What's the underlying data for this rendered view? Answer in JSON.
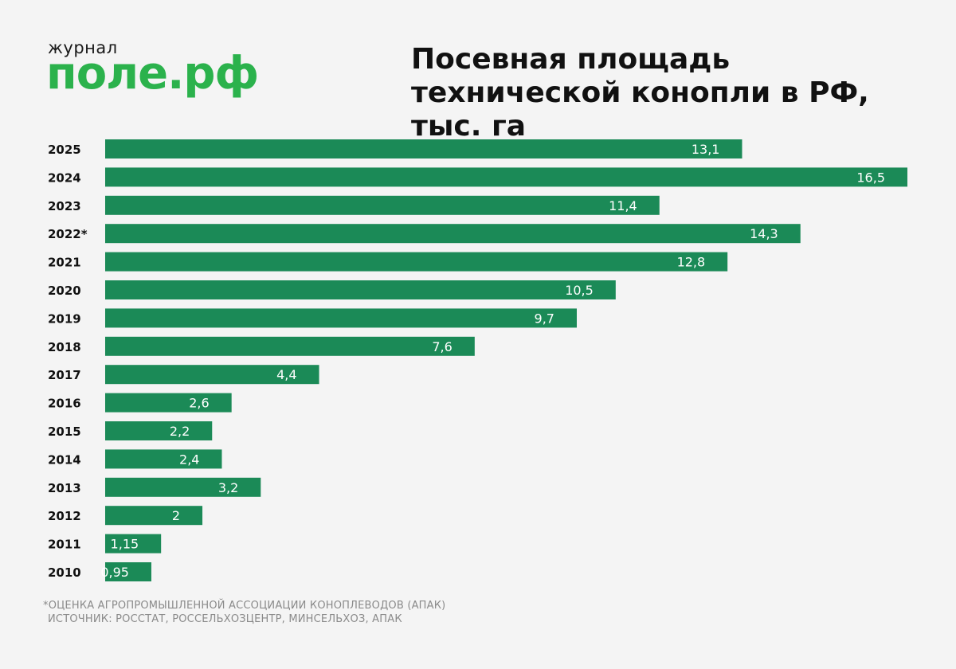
{
  "logo": {
    "small": "журнал",
    "main": "поле.рф"
  },
  "title": "Посевная площадь технической конопли в РФ, тыс. га",
  "footnote": {
    "line1": "*ОЦЕНКА АГРОПРОМЫШЛЕННОЙ АССОЦИАЦИИ КОНОПЛЕВОДОВ (АПАК)",
    "line2": "ИСТОЧНИК: РОССТАТ, РОССЕЛЬХОЗЦЕНТР, МИНСЕЛЬХОЗ, АПАК"
  },
  "colors": {
    "bar": "#1b8a57",
    "logo": "#2bb24c",
    "background": "#f4f4f4"
  },
  "chart_data": {
    "type": "bar",
    "orientation": "horizontal",
    "title": "Посевная площадь технической конопли в РФ, тыс. га",
    "categories": [
      "2025",
      "2024",
      "2023",
      "2022*",
      "2021",
      "2020",
      "2019",
      "2018",
      "2017",
      "2016",
      "2015",
      "2014",
      "2013",
      "2012",
      "2011",
      "2010"
    ],
    "values": [
      13.1,
      16.5,
      11.4,
      14.3,
      12.8,
      10.5,
      9.7,
      7.6,
      4.4,
      2.6,
      2.2,
      2.4,
      3.2,
      2.0,
      1.15,
      0.95
    ],
    "value_labels": [
      "13,1",
      "16,5",
      "11,4",
      "14,3",
      "12,8",
      "10,5",
      "9,7",
      "7,6",
      "4,4",
      "2,6",
      "2,2",
      "2,4",
      "3,2",
      "2",
      "1,15",
      "0,95"
    ],
    "xlabel": "",
    "ylabel": "",
    "grid": false,
    "legend": "none"
  }
}
